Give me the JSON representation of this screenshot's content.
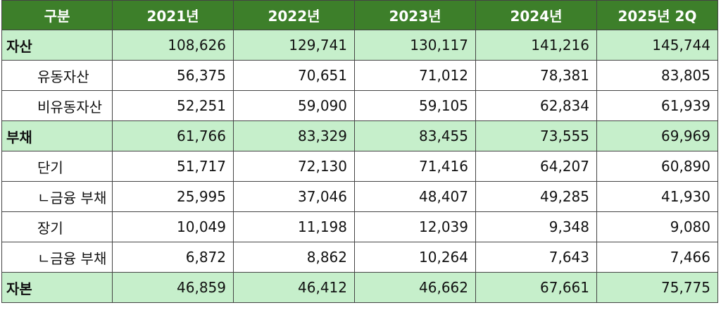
{
  "table": {
    "headers": [
      "구분",
      "2021년",
      "2022년",
      "2023년",
      "2024년",
      "2025년 2Q"
    ],
    "rows": [
      {
        "kind": "major",
        "label": "자산",
        "values": [
          "108,626",
          "129,741",
          "130,117",
          "141,216",
          "145,744"
        ]
      },
      {
        "kind": "sub",
        "label": "유동자산",
        "values": [
          "56,375",
          "70,651",
          "71,012",
          "78,381",
          "83,805"
        ]
      },
      {
        "kind": "sub",
        "label": "비유동자산",
        "values": [
          "52,251",
          "59,090",
          "59,105",
          "62,834",
          "61,939"
        ]
      },
      {
        "kind": "major",
        "label": "부채",
        "values": [
          "61,766",
          "83,329",
          "83,455",
          "73,555",
          "69,969"
        ]
      },
      {
        "kind": "sub",
        "label": "단기",
        "values": [
          "51,717",
          "72,130",
          "71,416",
          "64,207",
          "60,890"
        ]
      },
      {
        "kind": "sub",
        "label": "ㄴ금융 부채",
        "values": [
          "25,995",
          "37,046",
          "48,407",
          "49,285",
          "41,930"
        ]
      },
      {
        "kind": "sub",
        "label": "장기",
        "values": [
          "10,049",
          "11,198",
          "12,039",
          "9,348",
          "9,080"
        ]
      },
      {
        "kind": "sub",
        "label": "ㄴ금융 부채",
        "values": [
          "6,872",
          "8,862",
          "10,264",
          "7,643",
          "7,466"
        ]
      },
      {
        "kind": "major",
        "label": "자본",
        "values": [
          "46,859",
          "46,412",
          "46,662",
          "67,661",
          "75,775"
        ]
      }
    ]
  },
  "colors": {
    "header_bg": "#3d7f2a",
    "header_text": "#ffffff",
    "major_row_bg": "#c6efcb",
    "sub_row_bg": "#ffffff",
    "border": "#444444"
  }
}
